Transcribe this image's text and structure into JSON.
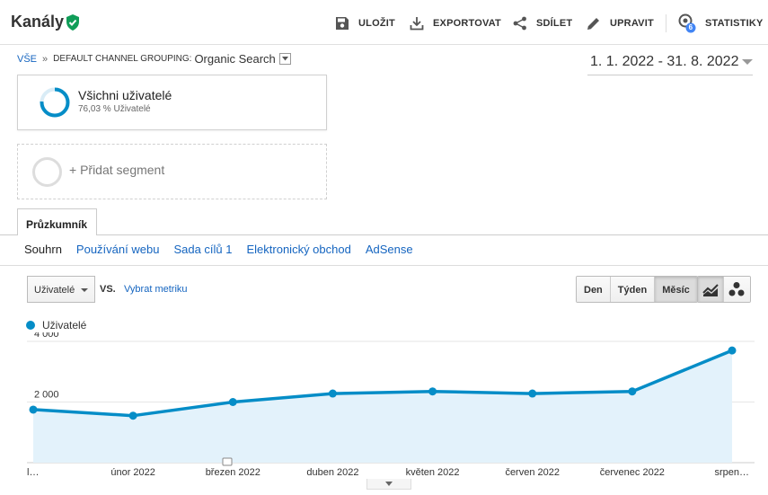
{
  "header": {
    "title": "Kanály",
    "toolbar": {
      "save": "ULOŽIT",
      "export": "EXPORTOVAT",
      "share": "SDÍLET",
      "edit": "UPRAVIT",
      "insights": "STATISTIKY",
      "insights_badge": "6"
    }
  },
  "breadcrumb": {
    "all": "VŠE",
    "separator": "»",
    "dimension": "DEFAULT CHANNEL GROUPING:",
    "value": "Organic Search"
  },
  "date_range": "1. 1. 2022 - 31. 8. 2022",
  "segments": {
    "active": {
      "name": "Všichni uživatelé",
      "detail": "76,03 % Uživatelé",
      "ring_percent": 76.03
    },
    "add_label": "+ Přidat segment"
  },
  "tab": {
    "label": "Průzkumník"
  },
  "subtabs": [
    "Souhrn",
    "Používání webu",
    "Sada cílů 1",
    "Elektronický obchod",
    "AdSense"
  ],
  "controls": {
    "metric": "Uživatelé",
    "vs": "VS.",
    "select_metric": "Vybrat metriku",
    "granularity": [
      "Den",
      "Týden",
      "Měsíc"
    ],
    "granularity_selected": "Měsíc"
  },
  "colors": {
    "accent": "#058dc7",
    "link": "#1565c0",
    "check": "#0f9d58",
    "area_fill": "#e3f2fb"
  },
  "chart_data": {
    "type": "area",
    "series": [
      {
        "name": "Uživatelé",
        "values": [
          1750,
          1550,
          2000,
          2280,
          2350,
          2280,
          2350,
          3700
        ]
      }
    ],
    "categories": [
      "l…",
      "únor 2022",
      "březen 2022",
      "duben 2022",
      "květen 2022",
      "červen 2022",
      "červenec 2022",
      "srpen…"
    ],
    "y_ticks": [
      {
        "value": 2000,
        "label": "2 000"
      },
      {
        "value": 4000,
        "label": "4 000"
      }
    ],
    "ylim": [
      0,
      4000
    ],
    "grid": true
  }
}
